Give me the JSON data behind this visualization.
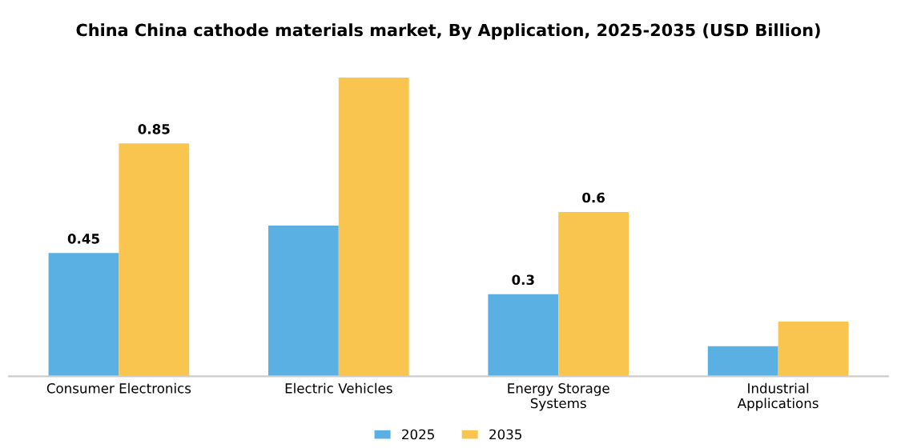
{
  "chart_data": {
    "type": "bar",
    "title": "China China cathode materials market, By Application, 2025-2035 (USD Billion)",
    "categories": [
      "Consumer Electronics",
      "Electric Vehicles",
      "Energy Storage\nSystems",
      "Industrial\nApplications"
    ],
    "series": [
      {
        "name": "2025",
        "color": "#5aafe3",
        "values": [
          0.45,
          0.55,
          0.3,
          0.11
        ],
        "value_labels": [
          "0.45",
          null,
          "0.3",
          null
        ]
      },
      {
        "name": "2035",
        "color": "#f9c54e",
        "values": [
          0.85,
          1.09,
          0.6,
          0.2
        ],
        "value_labels": [
          "0.85",
          null,
          "0.6",
          null
        ]
      }
    ],
    "legend": "bottom",
    "grid": false
  }
}
